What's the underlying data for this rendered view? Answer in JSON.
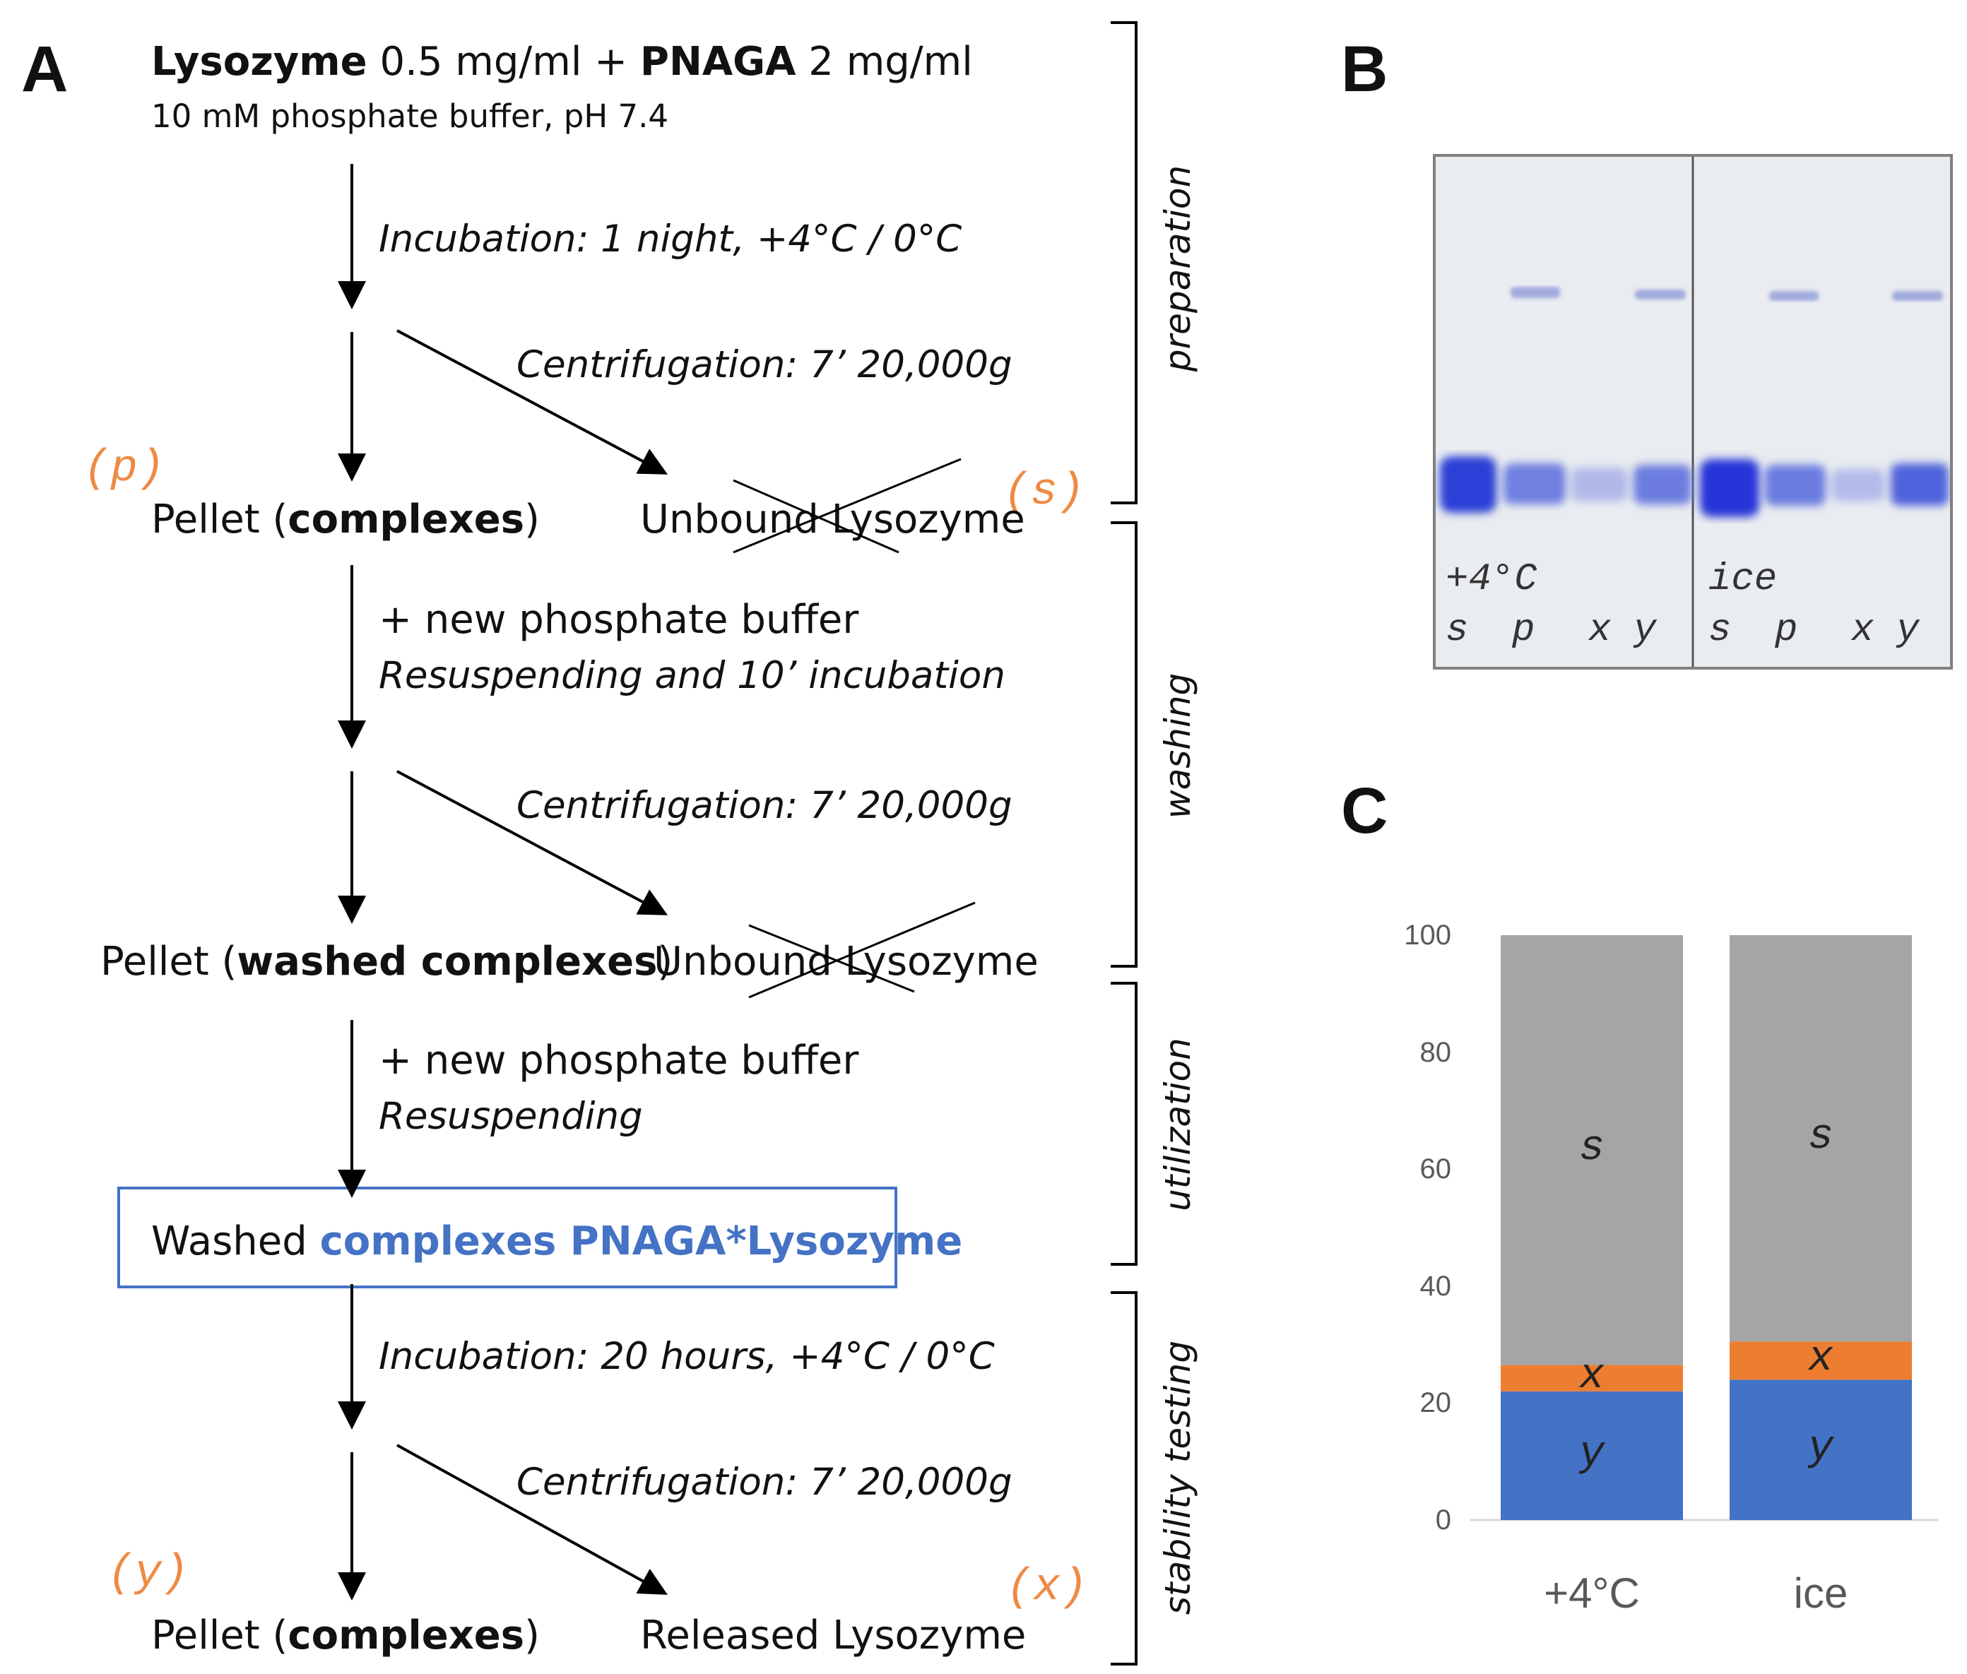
{
  "panels": {
    "a": "A",
    "b": "B",
    "c": "C"
  },
  "flow": {
    "start": {
      "lysozyme_bold": "Lysozyme",
      "lysozyme_conc": "0.5 mg/ml +",
      "pnaga_bold": "PNAGA",
      "pnaga_conc": "2 mg/ml",
      "buffer": "10 mM phosphate buffer, pH 7.4"
    },
    "step_incubation_1": "Incubation: 1 night, +4°C / 0°C",
    "step_centrifugation_1": "Centrifugation: 7’ 20,000g",
    "pellet_1": {
      "prefix": "Pellet (",
      "bold": "complexes",
      "suffix": ")"
    },
    "unbound_1": "Unbound Lysozyme",
    "step_new_buffer_1": "+ new phosphate buffer",
    "step_resuspend_1": "Resuspending and 10’ incubation",
    "step_centrifugation_2": "Centrifugation: 7’ 20,000g",
    "pellet_2": {
      "prefix": "Pellet (",
      "bold": "washed complexes",
      "suffix": ")"
    },
    "unbound_2": "Unbound Lysozyme",
    "step_new_buffer_2": "+ new phosphate buffer",
    "step_resuspend_2": "Resuspending",
    "washed_box": {
      "prefix": "Washed",
      "highlight": "complexes PNAGA*Lysozyme"
    },
    "step_incubation_2": "Incubation: 20 hours, +4°C / 0°C",
    "step_centrifugation_3": "Centrifugation: 7’ 20,000g",
    "pellet_3": {
      "prefix": "Pellet (",
      "bold": "complexes",
      "suffix": ")"
    },
    "released": "Released Lysozyme",
    "sample_labels": {
      "p": "(p)",
      "s": "(s)",
      "y": "(y)",
      "x": "(x)"
    }
  },
  "phases": [
    "preparation",
    "washing",
    "utilization",
    "stability testing"
  ],
  "gel": {
    "conditions": [
      "+4°C",
      "ice"
    ],
    "lanes": [
      "s",
      "p",
      "x",
      "y",
      "s",
      "p",
      "x",
      "y"
    ]
  },
  "colors": {
    "s": "#a5a5a5",
    "x": "#ed7d31",
    "y": "#4472c4",
    "accent_orange": "#ee8a44",
    "accent_blue": "#4472c4"
  },
  "chart_data": {
    "type": "bar",
    "stacked": true,
    "categories": [
      "+4°C",
      "ice"
    ],
    "series": [
      {
        "name": "y",
        "values": [
          22,
          24
        ]
      },
      {
        "name": "x",
        "values": [
          4.5,
          6.5
        ]
      },
      {
        "name": "s",
        "values": [
          73.5,
          69.5
        ]
      }
    ],
    "ylim": [
      0,
      100
    ],
    "yticks": [
      "0",
      "20",
      "40",
      "60",
      "80",
      "100"
    ],
    "title": "",
    "xlabel": "",
    "ylabel": ""
  }
}
